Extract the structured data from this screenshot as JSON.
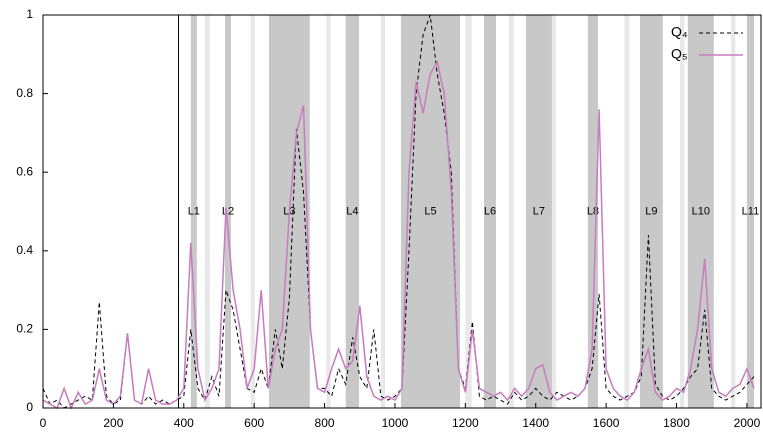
{
  "chart_data": {
    "type": "line",
    "x": [
      0,
      20,
      40,
      60,
      80,
      100,
      120,
      140,
      160,
      180,
      200,
      220,
      240,
      260,
      280,
      300,
      320,
      340,
      360,
      380,
      400,
      420,
      440,
      460,
      480,
      500,
      520,
      540,
      560,
      580,
      600,
      620,
      640,
      660,
      680,
      700,
      720,
      740,
      760,
      780,
      800,
      820,
      840,
      860,
      880,
      900,
      920,
      940,
      960,
      980,
      1000,
      1020,
      1040,
      1060,
      1080,
      1100,
      1120,
      1140,
      1160,
      1180,
      1200,
      1220,
      1240,
      1260,
      1280,
      1300,
      1320,
      1340,
      1360,
      1380,
      1400,
      1420,
      1440,
      1460,
      1480,
      1500,
      1520,
      1540,
      1560,
      1580,
      1600,
      1620,
      1640,
      1660,
      1680,
      1700,
      1720,
      1740,
      1760,
      1780,
      1800,
      1820,
      1840,
      1860,
      1880,
      1900,
      1920,
      1940,
      1960,
      1980,
      2000,
      2020
    ],
    "series": [
      {
        "name": "Q₄",
        "color": "#000000",
        "dashed": true,
        "values": [
          0.05,
          0.01,
          0.02,
          0,
          0.01,
          0.02,
          0.03,
          0.02,
          0.27,
          0.03,
          0.01,
          0.02,
          0.19,
          0.02,
          0.01,
          0.03,
          0.01,
          0.02,
          0.01,
          0.02,
          0.03,
          0.2,
          0.05,
          0.02,
          0.08,
          0.03,
          0.3,
          0.25,
          0.15,
          0.05,
          0.04,
          0.1,
          0.05,
          0.2,
          0.1,
          0.28,
          0.71,
          0.55,
          0.2,
          0.05,
          0.05,
          0.03,
          0.1,
          0.06,
          0.18,
          0.08,
          0.05,
          0.2,
          0.03,
          0.02,
          0.03,
          0.05,
          0.4,
          0.8,
          0.95,
          1.0,
          0.85,
          0.75,
          0.6,
          0.1,
          0.05,
          0.22,
          0.03,
          0.02,
          0.03,
          0.02,
          0.01,
          0.04,
          0.02,
          0.03,
          0.05,
          0.03,
          0.02,
          0.04,
          0.03,
          0.02,
          0.03,
          0.05,
          0.1,
          0.29,
          0.05,
          0.03,
          0.02,
          0.03,
          0.04,
          0.08,
          0.44,
          0.06,
          0.03,
          0.02,
          0.03,
          0.05,
          0.08,
          0.1,
          0.25,
          0.05,
          0.03,
          0.02,
          0.03,
          0.04,
          0.06,
          0.08
        ]
      },
      {
        "name": "Q₅",
        "color": "#c77cc0",
        "dashed": false,
        "values": [
          0.02,
          0.01,
          0,
          0.05,
          0,
          0.04,
          0.01,
          0.02,
          0.1,
          0.02,
          0.01,
          0.03,
          0.19,
          0.02,
          0.01,
          0.1,
          0.02,
          0.01,
          0.01,
          0.02,
          0.05,
          0.42,
          0.1,
          0.02,
          0.05,
          0.1,
          0.51,
          0.3,
          0.2,
          0.05,
          0.1,
          0.3,
          0.05,
          0.15,
          0.2,
          0.5,
          0.7,
          0.77,
          0.2,
          0.05,
          0.04,
          0.1,
          0.15,
          0.1,
          0.12,
          0.26,
          0.08,
          0.03,
          0.02,
          0.03,
          0.02,
          0.05,
          0.6,
          0.83,
          0.75,
          0.85,
          0.88,
          0.8,
          0.55,
          0.1,
          0.04,
          0.2,
          0.05,
          0.04,
          0.03,
          0.04,
          0.02,
          0.05,
          0.03,
          0.05,
          0.1,
          0.11,
          0.04,
          0.02,
          0.03,
          0.04,
          0.03,
          0.05,
          0.15,
          0.76,
          0.1,
          0.05,
          0.03,
          0.02,
          0.04,
          0.1,
          0.15,
          0.04,
          0.02,
          0.03,
          0.05,
          0.04,
          0.1,
          0.2,
          0.38,
          0.1,
          0.04,
          0.03,
          0.05,
          0.06,
          0.1,
          0.05
        ]
      }
    ],
    "regions": [
      {
        "label": "L1",
        "start": 420,
        "end": 437
      },
      {
        "label": "L2",
        "start": 517,
        "end": 534
      },
      {
        "label": "L3",
        "start": 642,
        "end": 758
      },
      {
        "label": "L4",
        "start": 860,
        "end": 898
      },
      {
        "label": "L5",
        "start": 1017,
        "end": 1185
      },
      {
        "label": "L6",
        "start": 1253,
        "end": 1287
      },
      {
        "label": "L7",
        "start": 1372,
        "end": 1446
      },
      {
        "label": "L8",
        "start": 1548,
        "end": 1577
      },
      {
        "label": "L9",
        "start": 1696,
        "end": 1761
      },
      {
        "label": "L10",
        "start": 1832,
        "end": 1906
      },
      {
        "label": "L11",
        "start": 2000,
        "end": 2020
      }
    ],
    "region_color": "#c8c8c8",
    "light_bands": [
      [
        460,
        474
      ],
      [
        590,
        602
      ],
      [
        805,
        817
      ],
      [
        960,
        972
      ],
      [
        1200,
        1218
      ],
      [
        1324,
        1338
      ],
      [
        1443,
        1457
      ],
      [
        1652,
        1666
      ],
      [
        1810,
        1822
      ],
      [
        1955,
        1967
      ]
    ],
    "light_band_color": "#e8e8e8",
    "vline": 385,
    "xlim": [
      0,
      2040
    ],
    "xticks": [
      0,
      200,
      400,
      600,
      800,
      1000,
      1200,
      1400,
      1600,
      1800,
      2000
    ],
    "ylim": [
      0,
      1
    ],
    "yticks": [
      0,
      0.2,
      0.4,
      0.6,
      0.8,
      1
    ],
    "legend": "top-right"
  }
}
